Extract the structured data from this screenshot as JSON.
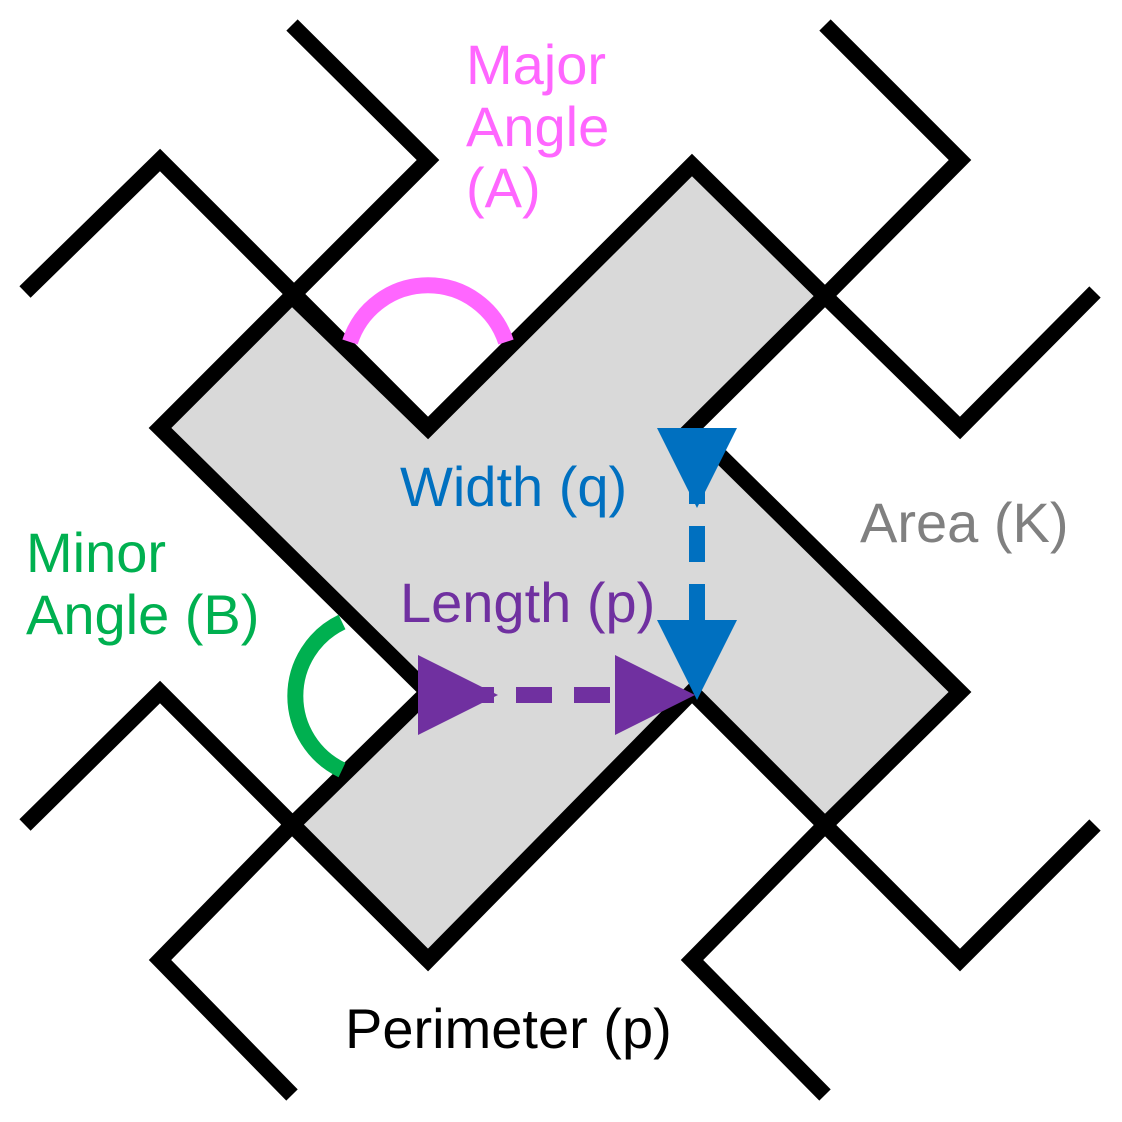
{
  "labels": {
    "major_angle": {
      "line1": "Major",
      "line2": "Angle",
      "line3": "(A)"
    },
    "minor_angle": {
      "line1": "Minor",
      "line2": "Angle (B)"
    },
    "width": "Width (q)",
    "length": "Length (p)",
    "area": "Area (K)",
    "perimeter": "Perimeter (p)"
  },
  "colors": {
    "major_angle": "#ff66ff",
    "minor_angle": "#00b050",
    "width": "#0070c0",
    "length": "#7030a0",
    "area": "#808080",
    "perimeter": "#000000",
    "shape_fill": "#d9d9d9",
    "outline": "#000000"
  }
}
